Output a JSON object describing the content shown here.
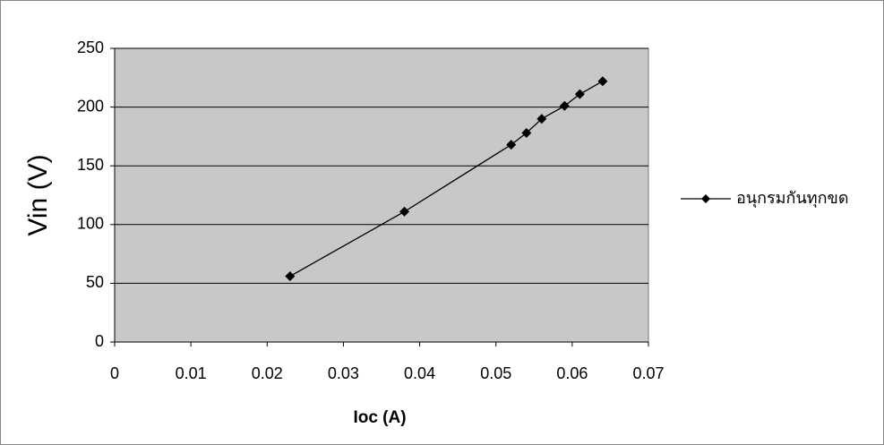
{
  "chart_data": {
    "type": "line",
    "x_label": "Ioc (A)",
    "y_label": "Vin (V)",
    "x": [
      0.023,
      0.038,
      0.052,
      0.054,
      0.056,
      0.059,
      0.061,
      0.064
    ],
    "series": [
      {
        "name": "อนุกรมกันทุกขด",
        "color": "#000000",
        "values": [
          56,
          111,
          168,
          178,
          190,
          201,
          211,
          222
        ]
      }
    ],
    "xlim": [
      0,
      0.07
    ],
    "xticks": [
      0,
      0.01,
      0.02,
      0.03,
      0.04,
      0.05,
      0.06,
      0.07
    ],
    "ylim": [
      0,
      250
    ],
    "yticks": [
      0,
      50,
      100,
      150,
      200,
      250
    ],
    "grid": true,
    "legend": "right"
  }
}
